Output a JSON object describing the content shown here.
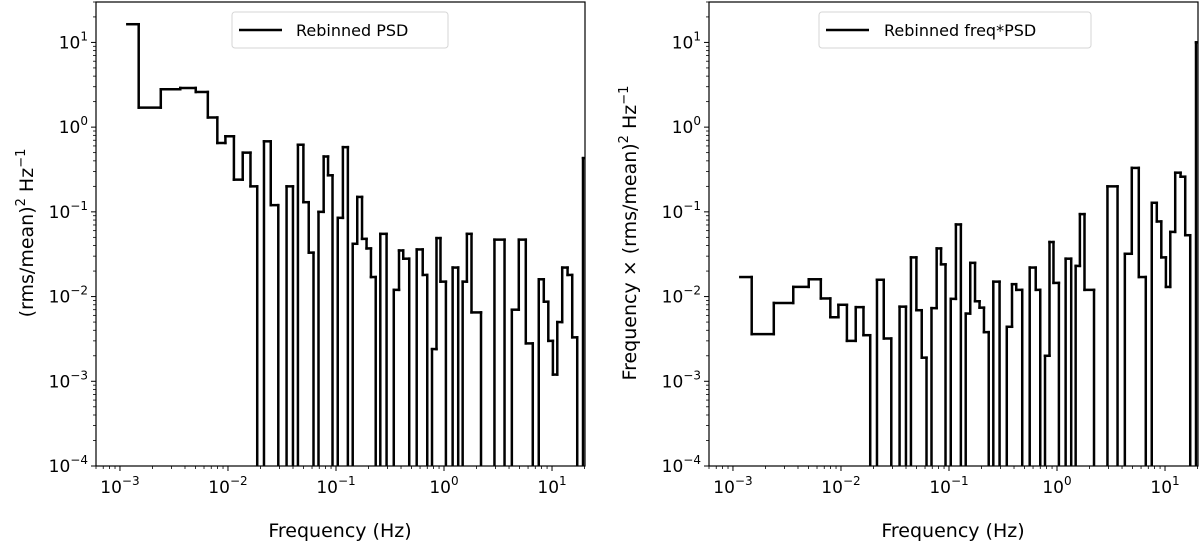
{
  "chart_data": [
    {
      "type": "line",
      "drawstyle": "steps-mid",
      "x_scale": "log",
      "y_scale": "log",
      "xlabel": "Frequency (Hz)",
      "ylabel": "(rms/mean)² Hz⁻¹",
      "ylabel_parts": {
        "main": "(rms/mean)",
        "sup1": "2",
        "mid": " Hz",
        "sup2": "−1"
      },
      "xlim": [
        0.0006,
        20.2
      ],
      "ylim": [
        0.0001,
        30
      ],
      "x_ticks": [
        {
          "base": "10",
          "exp": "−3",
          "value": 0.001
        },
        {
          "base": "10",
          "exp": "−2",
          "value": 0.01
        },
        {
          "base": "10",
          "exp": "−1",
          "value": 0.1
        },
        {
          "base": "10",
          "exp": "0",
          "value": 1
        },
        {
          "base": "10",
          "exp": "1",
          "value": 10
        }
      ],
      "y_ticks": [
        {
          "base": "10",
          "exp": "−4",
          "value": 0.0001
        },
        {
          "base": "10",
          "exp": "−3",
          "value": 0.001
        },
        {
          "base": "10",
          "exp": "−2",
          "value": 0.01
        },
        {
          "base": "10",
          "exp": "−1",
          "value": 0.1
        },
        {
          "base": "10",
          "exp": "0",
          "value": 1
        },
        {
          "base": "10",
          "exp": "1",
          "value": 10
        }
      ],
      "grid": false,
      "legend": {
        "placement": "top-center",
        "entries": [
          "Rebinned PSD"
        ]
      },
      "color": "#000000",
      "series": [
        {
          "name": "Rebinned PSD",
          "x": [
            0.00117,
            0.0019,
            0.003,
            0.00436,
            0.0058,
            0.0073,
            0.0087,
            0.0103,
            0.0125,
            0.015,
            0.0174,
            0.02,
            0.0232,
            0.0267,
            0.032,
            0.038,
            0.042,
            0.047,
            0.053,
            0.059,
            0.065,
            0.073,
            0.081,
            0.088,
            0.098,
            0.11,
            0.122,
            0.136,
            0.15,
            0.165,
            0.184,
            0.2,
            0.222,
            0.245,
            0.27,
            0.32,
            0.367,
            0.4,
            0.44,
            0.516,
            0.605,
            0.667,
            0.734,
            0.817,
            0.889,
            0.968,
            1.12,
            1.29,
            1.42,
            1.56,
            1.7,
            1.9,
            2.55,
            3.37,
            3.92,
            4.6,
            5.27,
            6.2,
            7.1,
            8.0,
            8.8,
            9.7,
            10.7,
            11.7,
            13.2,
            14.7,
            16.1,
            18.2,
            20.6
          ],
          "y": [
            16.4,
            1.7,
            2.8,
            2.9,
            2.6,
            1.3,
            0.65,
            0.78,
            0.24,
            0.5,
            0.2,
            0,
            0.68,
            0.12,
            0,
            0.2,
            0,
            0.62,
            0.13,
            0.033,
            0,
            0.1,
            0.45,
            0.27,
            0,
            0.085,
            0.58,
            0,
            0.042,
            0.15,
            0.048,
            0.037,
            0.017,
            0,
            0.055,
            0,
            0.012,
            0.035,
            0.028,
            0,
            0.036,
            0.018,
            0,
            0.0024,
            0.049,
            0.015,
            0,
            0.022,
            0,
            0.015,
            0.055,
            0.0065,
            0,
            0.047,
            0,
            0.007,
            0.047,
            0.0028,
            0,
            0.016,
            0.0087,
            0.003,
            0.0012,
            0.005,
            0.022,
            0.018,
            0.0033,
            0,
            0.43
          ]
        }
      ]
    },
    {
      "type": "line",
      "drawstyle": "steps-mid",
      "x_scale": "log",
      "y_scale": "log",
      "xlabel": "Frequency (Hz)",
      "ylabel": "Frequency × (rms/mean)² Hz⁻¹",
      "ylabel_parts": {
        "main": "Frequency × (rms/mean)",
        "sup1": "2",
        "mid": " Hz",
        "sup2": "−1"
      },
      "xlim": [
        0.0006,
        20.2
      ],
      "ylim": [
        0.0001,
        30
      ],
      "x_ticks": [
        {
          "base": "10",
          "exp": "−3",
          "value": 0.001
        },
        {
          "base": "10",
          "exp": "−2",
          "value": 0.01
        },
        {
          "base": "10",
          "exp": "−1",
          "value": 0.1
        },
        {
          "base": "10",
          "exp": "0",
          "value": 1
        },
        {
          "base": "10",
          "exp": "1",
          "value": 10
        }
      ],
      "y_ticks": [
        {
          "base": "10",
          "exp": "−4",
          "value": 0.0001
        },
        {
          "base": "10",
          "exp": "−3",
          "value": 0.001
        },
        {
          "base": "10",
          "exp": "−2",
          "value": 0.01
        },
        {
          "base": "10",
          "exp": "−1",
          "value": 0.1
        },
        {
          "base": "10",
          "exp": "0",
          "value": 1
        },
        {
          "base": "10",
          "exp": "1",
          "value": 10
        }
      ],
      "grid": false,
      "legend": {
        "placement": "top-center",
        "entries": [
          "Rebinned freq*PSD"
        ]
      },
      "color": "#000000",
      "series": [
        {
          "name": "Rebinned freq*PSD",
          "x": [
            0.00117,
            0.0019,
            0.003,
            0.00436,
            0.0058,
            0.0073,
            0.0087,
            0.0103,
            0.0125,
            0.015,
            0.0174,
            0.02,
            0.0232,
            0.0267,
            0.032,
            0.038,
            0.042,
            0.047,
            0.053,
            0.059,
            0.065,
            0.073,
            0.081,
            0.088,
            0.098,
            0.11,
            0.122,
            0.136,
            0.15,
            0.165,
            0.184,
            0.2,
            0.222,
            0.245,
            0.27,
            0.32,
            0.367,
            0.4,
            0.44,
            0.516,
            0.605,
            0.667,
            0.734,
            0.817,
            0.889,
            0.968,
            1.12,
            1.29,
            1.42,
            1.56,
            1.7,
            1.9,
            2.55,
            3.37,
            3.92,
            4.6,
            5.27,
            6.2,
            7.1,
            8.0,
            8.8,
            9.7,
            10.7,
            11.7,
            13.2,
            14.7,
            16.1,
            18.2,
            20.6
          ],
          "y": [
            0.017,
            0.0036,
            0.0084,
            0.013,
            0.016,
            0.0095,
            0.0057,
            0.008,
            0.003,
            0.0075,
            0.0035,
            0,
            0.0158,
            0.0032,
            0,
            0.0076,
            0,
            0.029,
            0.0069,
            0.0019,
            0,
            0.0073,
            0.037,
            0.024,
            0,
            0.0094,
            0.071,
            0,
            0.0063,
            0.025,
            0.0088,
            0.0074,
            0.0038,
            0,
            0.015,
            0,
            0.0044,
            0.014,
            0.012,
            0,
            0.022,
            0.012,
            0,
            0.002,
            0.044,
            0.0145,
            0,
            0.028,
            0,
            0.023,
            0.094,
            0.012,
            0,
            0.2,
            0,
            0.032,
            0.33,
            0.017,
            0,
            0.128,
            0.077,
            0.029,
            0.013,
            0.058,
            0.29,
            0.26,
            0.053,
            0,
            10
          ]
        }
      ]
    }
  ]
}
